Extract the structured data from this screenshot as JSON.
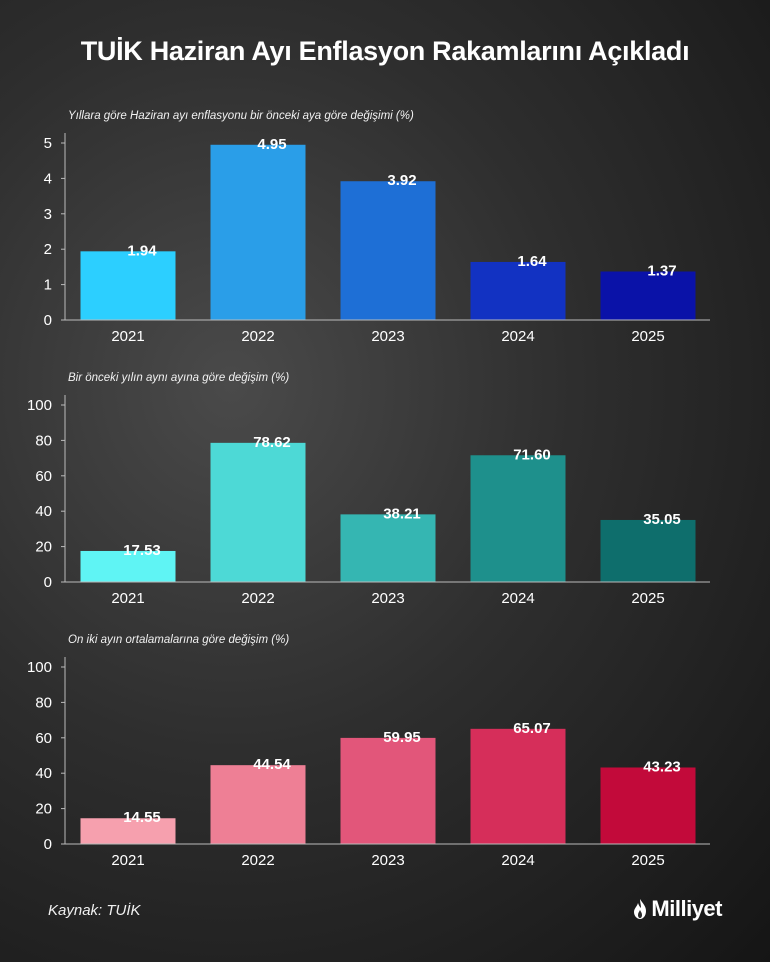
{
  "title": "TUİK Haziran Ayı Enflasyon Rakamlarını Açıkladı",
  "source": "Kaynak: TUİK",
  "brand": "Milliyet",
  "chart_data": [
    {
      "type": "bar",
      "title": "Yıllara göre Haziran ayı enflasyonu bir önceki aya göre değişimi (%)",
      "categories": [
        "2021",
        "2022",
        "2023",
        "2024",
        "2025"
      ],
      "values": [
        1.94,
        4.95,
        3.92,
        1.64,
        1.37
      ],
      "labels": [
        "1.94",
        "4.95",
        "3.92",
        "1.64",
        "1.37"
      ],
      "yticks": [
        "0",
        "1",
        "2",
        "3",
        "4",
        "5"
      ],
      "ylim": [
        0,
        5
      ],
      "colors": [
        "#2ccfff",
        "#2a9ee8",
        "#1e6fd6",
        "#1232c2",
        "#0a12a8"
      ]
    },
    {
      "type": "bar",
      "title": "Bir önceki yılın aynı ayına göre değişim (%)",
      "categories": [
        "2021",
        "2022",
        "2023",
        "2024",
        "2025"
      ],
      "values": [
        17.53,
        78.62,
        38.21,
        71.6,
        35.05
      ],
      "labels": [
        "17.53",
        "78.62",
        "38.21",
        "71.60",
        "35.05"
      ],
      "yticks": [
        "0",
        "20",
        "40",
        "60",
        "80",
        "100"
      ],
      "ylim": [
        0,
        100
      ],
      "colors": [
        "#5ff4f4",
        "#4dd9d6",
        "#35b6b2",
        "#1e908c",
        "#0e6e6c"
      ]
    },
    {
      "type": "bar",
      "title": "On iki ayın ortalamalarına göre değişim (%)",
      "categories": [
        "2021",
        "2022",
        "2023",
        "2024",
        "2025"
      ],
      "values": [
        14.55,
        44.54,
        59.95,
        65.07,
        43.23
      ],
      "labels": [
        "14.55",
        "44.54",
        "59.95",
        "65.07",
        "43.23"
      ],
      "yticks": [
        "0",
        "20",
        "40",
        "60",
        "80",
        "100"
      ],
      "ylim": [
        0,
        100
      ],
      "colors": [
        "#f6a0ae",
        "#ee7f95",
        "#e2567a",
        "#d62e5a",
        "#c20a3a"
      ]
    }
  ]
}
